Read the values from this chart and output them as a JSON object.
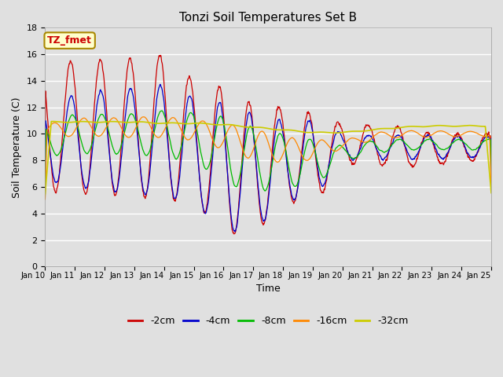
{
  "title": "Tonzi Soil Temperatures Set B",
  "xlabel": "Time",
  "ylabel": "Soil Temperature (C)",
  "annotation": "TZ_fmet",
  "annotation_color": "#cc0000",
  "annotation_bg": "#ffffcc",
  "annotation_border": "#aa8800",
  "ylim": [
    0,
    18
  ],
  "yticks": [
    0,
    2,
    4,
    6,
    8,
    10,
    12,
    14,
    16,
    18
  ],
  "background_color": "#e0e0e0",
  "grid_color": "#ffffff",
  "series_colors": {
    "-2cm": "#cc0000",
    "-4cm": "#0000cc",
    "-8cm": "#00bb00",
    "-16cm": "#ff8800",
    "-32cm": "#cccc00"
  },
  "x_tick_labels": [
    "Jan 10",
    "Jan 11",
    "Jan 12",
    "Jan 13",
    "Jan 14",
    "Jan 15",
    "Jan 16",
    "Jan 17",
    "Jan 18",
    "Jan 19",
    "Jan 20",
    "Jan 21",
    "Jan 22",
    "Jan 23",
    "Jan 24",
    "Jan 25"
  ],
  "num_days": 15,
  "pts_per_day": 96
}
